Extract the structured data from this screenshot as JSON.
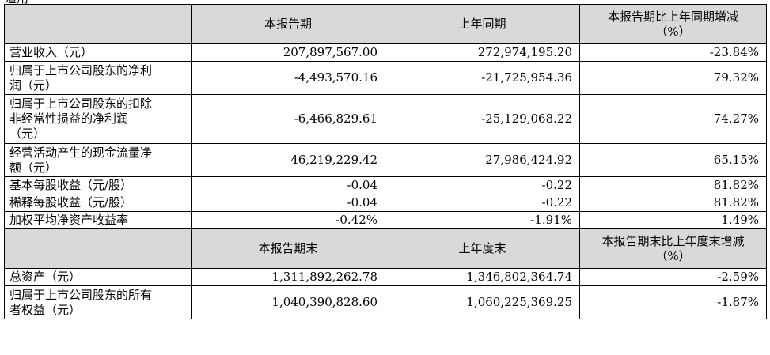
{
  "top_fragment": "适用",
  "header1": {
    "col1": "本报告期",
    "col2": "上年同期",
    "col3_line1": "本报告期比上年同期增减",
    "col3_line2": "（%）"
  },
  "rows1": [
    {
      "label_lines": [
        "营业收入（元）"
      ],
      "current": "207,897,567.00",
      "prior": "272,974,195.20",
      "change": "-23.84%"
    },
    {
      "label_lines": [
        "归属于上市公司股东的净利",
        "润（元）"
      ],
      "current": "-4,493,570.16",
      "prior": "-21,725,954.36",
      "change": "79.32%"
    },
    {
      "label_lines": [
        "归属于上市公司股东的扣除",
        "非经常性损益的净利润",
        "（元）"
      ],
      "current": "-6,466,829.61",
      "prior": "-25,129,068.22",
      "change": "74.27%"
    },
    {
      "label_lines": [
        "经营活动产生的现金流量净",
        "额（元）"
      ],
      "current": "46,219,229.42",
      "prior": "27,986,424.92",
      "change": "65.15%"
    },
    {
      "label_lines": [
        "基本每股收益（元/股）"
      ],
      "current": "-0.04",
      "prior": "-0.22",
      "change": "81.82%"
    },
    {
      "label_lines": [
        "稀释每股收益（元/股）"
      ],
      "current": "-0.04",
      "prior": "-0.22",
      "change": "81.82%"
    },
    {
      "label_lines": [
        "加权平均净资产收益率"
      ],
      "current": "-0.42%",
      "prior": "-1.91%",
      "change": "1.49%"
    }
  ],
  "header2": {
    "col1": "本报告期末",
    "col2": "上年度末",
    "col3_line1": "本报告期末比上年度末增减",
    "col3_line2": "（%）"
  },
  "rows2": [
    {
      "label_lines": [
        "总资产（元）"
      ],
      "current": "1,311,892,262.78",
      "prior": "1,346,802,364.74",
      "change": "-2.59%"
    },
    {
      "label_lines": [
        "归属于上市公司股东的所有",
        "者权益（元）"
      ],
      "current": "1,040,390,828.60",
      "prior": "1,060,225,369.25",
      "change": "-1.87%"
    }
  ]
}
